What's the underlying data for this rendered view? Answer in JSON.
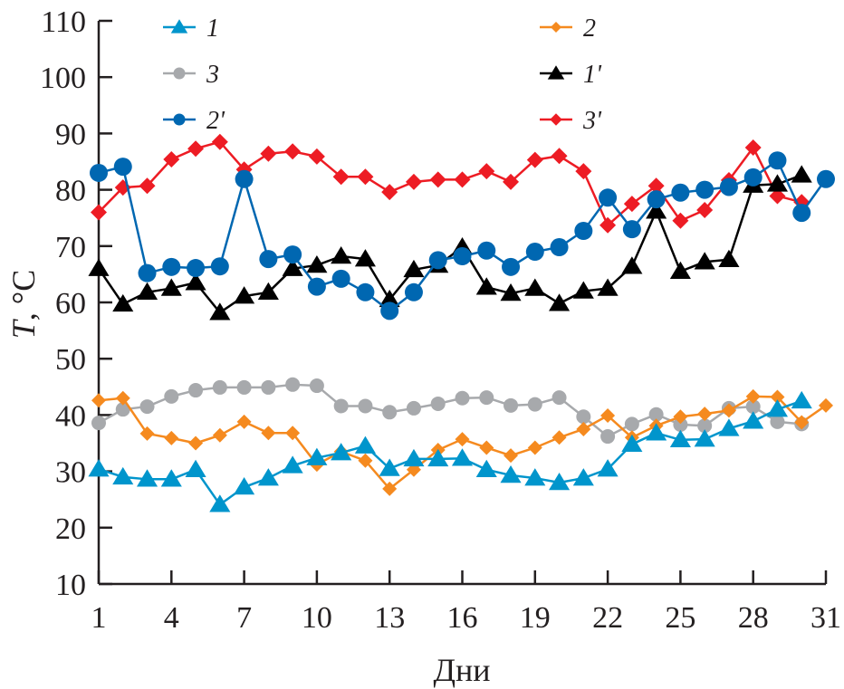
{
  "chart_data": {
    "type": "line",
    "title": "",
    "xlabel": "Дни",
    "ylabel_italic": "T",
    "ylabel_rest": ", °C",
    "xlim": [
      1,
      31
    ],
    "ylim": [
      10,
      110
    ],
    "xticks": [
      1,
      4,
      7,
      10,
      13,
      16,
      19,
      22,
      25,
      28,
      31
    ],
    "yticks": [
      10,
      20,
      30,
      40,
      50,
      60,
      70,
      80,
      90,
      100,
      110
    ],
    "grid": false,
    "legend_position": "top",
    "series": [
      {
        "name": "1",
        "color": "#0095cc",
        "marker": "triangle",
        "x": [
          1,
          2,
          3,
          4,
          5,
          6,
          7,
          8,
          9,
          10,
          11,
          12,
          13,
          14,
          15,
          16,
          17,
          18,
          19,
          20,
          21,
          22,
          23,
          24,
          25,
          26,
          27,
          28,
          29,
          30
        ],
        "values": [
          30.4,
          29.0,
          28.6,
          28.6,
          30.3,
          24.1,
          27.2,
          28.8,
          31.0,
          32.4,
          33.3,
          34.5,
          30.5,
          32.2,
          32.2,
          32.3,
          30.3,
          29.3,
          28.8,
          28.0,
          28.8,
          30.4,
          34.8,
          36.8,
          35.6,
          35.7,
          37.6,
          38.9,
          41.0,
          42.5
        ]
      },
      {
        "name": "2",
        "color": "#f58a1f",
        "marker": "diamond-small",
        "x": [
          1,
          2,
          3,
          4,
          5,
          6,
          7,
          8,
          9,
          10,
          11,
          12,
          13,
          14,
          15,
          16,
          17,
          18,
          19,
          20,
          21,
          22,
          23,
          24,
          25,
          26,
          27,
          28,
          29,
          30,
          31
        ],
        "values": [
          42.6,
          43.0,
          36.7,
          35.9,
          35.0,
          36.4,
          38.8,
          36.8,
          36.8,
          31.2,
          33.5,
          31.9,
          26.9,
          30.3,
          33.8,
          35.7,
          34.2,
          32.8,
          34.2,
          36.0,
          37.5,
          39.9,
          36.0,
          38.1,
          39.7,
          40.2,
          40.8,
          43.3,
          43.2,
          38.7,
          41.7
        ]
      },
      {
        "name": "3",
        "color": "#a7a9ac",
        "marker": "circle-small",
        "x": [
          1,
          2,
          3,
          4,
          5,
          6,
          7,
          8,
          9,
          10,
          11,
          12,
          13,
          14,
          15,
          16,
          17,
          18,
          19,
          20,
          21,
          22,
          23,
          24,
          25,
          26,
          27,
          28,
          29,
          30
        ],
        "values": [
          38.6,
          41.0,
          41.5,
          43.3,
          44.4,
          44.9,
          44.9,
          44.9,
          45.4,
          45.2,
          41.6,
          41.6,
          40.5,
          41.2,
          42.0,
          43.0,
          43.1,
          41.7,
          41.9,
          43.1,
          39.7,
          36.2,
          38.4,
          40.1,
          38.3,
          38.1,
          41.2,
          41.5,
          38.8,
          38.4
        ]
      },
      {
        "name": "1'",
        "color": "#000000",
        "marker": "triangle",
        "x": [
          1,
          2,
          3,
          4,
          5,
          6,
          7,
          8,
          9,
          10,
          11,
          12,
          13,
          14,
          15,
          16,
          17,
          18,
          19,
          20,
          21,
          22,
          23,
          24,
          25,
          26,
          27,
          28,
          29,
          30
        ],
        "values": [
          66.0,
          59.7,
          61.8,
          62.5,
          63.5,
          58.2,
          61.1,
          61.8,
          66.0,
          66.6,
          68.2,
          67.7,
          60.5,
          65.8,
          66.6,
          69.8,
          62.7,
          61.6,
          62.5,
          59.8,
          62.0,
          62.5,
          66.4,
          76.2,
          65.5,
          67.2,
          67.6,
          80.8,
          81.0,
          82.6
        ]
      },
      {
        "name": "2'",
        "color": "#0067b1",
        "marker": "circle",
        "x": [
          1,
          2,
          3,
          4,
          5,
          6,
          7,
          8,
          9,
          10,
          11,
          12,
          13,
          14,
          15,
          16,
          17,
          18,
          19,
          20,
          21,
          22,
          23,
          24,
          25,
          26,
          27,
          28,
          29,
          30,
          31
        ],
        "values": [
          83.0,
          84.1,
          65.2,
          66.3,
          66.1,
          66.4,
          81.9,
          67.7,
          68.5,
          62.8,
          64.2,
          61.8,
          58.5,
          61.8,
          67.5,
          68.2,
          69.2,
          66.3,
          69.0,
          69.8,
          72.7,
          78.6,
          73.0,
          78.3,
          79.5,
          80.0,
          80.5,
          82.2,
          85.2,
          75.9,
          81.9
        ]
      },
      {
        "name": "3'",
        "color": "#ed1c24",
        "marker": "diamond",
        "x": [
          1,
          2,
          3,
          4,
          5,
          6,
          7,
          8,
          9,
          10,
          11,
          12,
          13,
          14,
          15,
          16,
          17,
          18,
          19,
          20,
          21,
          22,
          23,
          24,
          25,
          26,
          27,
          28,
          29,
          30
        ],
        "values": [
          76.0,
          80.4,
          80.7,
          85.4,
          87.3,
          88.5,
          83.6,
          86.4,
          86.8,
          85.9,
          82.3,
          82.3,
          79.6,
          81.4,
          81.8,
          81.8,
          83.3,
          81.4,
          85.3,
          86.0,
          83.3,
          73.7,
          77.5,
          80.7,
          74.5,
          76.4,
          81.7,
          87.5,
          78.9,
          77.8
        ]
      }
    ],
    "legend": [
      {
        "series": 0,
        "label": "1",
        "column": "left",
        "row": 0
      },
      {
        "series": 2,
        "label": "3",
        "column": "left",
        "row": 1
      },
      {
        "series": 4,
        "label": "2'",
        "column": "left",
        "row": 2
      },
      {
        "series": 1,
        "label": "2",
        "column": "right",
        "row": 0
      },
      {
        "series": 3,
        "label": "1'",
        "column": "right",
        "row": 1
      },
      {
        "series": 5,
        "label": "3'",
        "column": "right",
        "row": 2
      }
    ]
  }
}
